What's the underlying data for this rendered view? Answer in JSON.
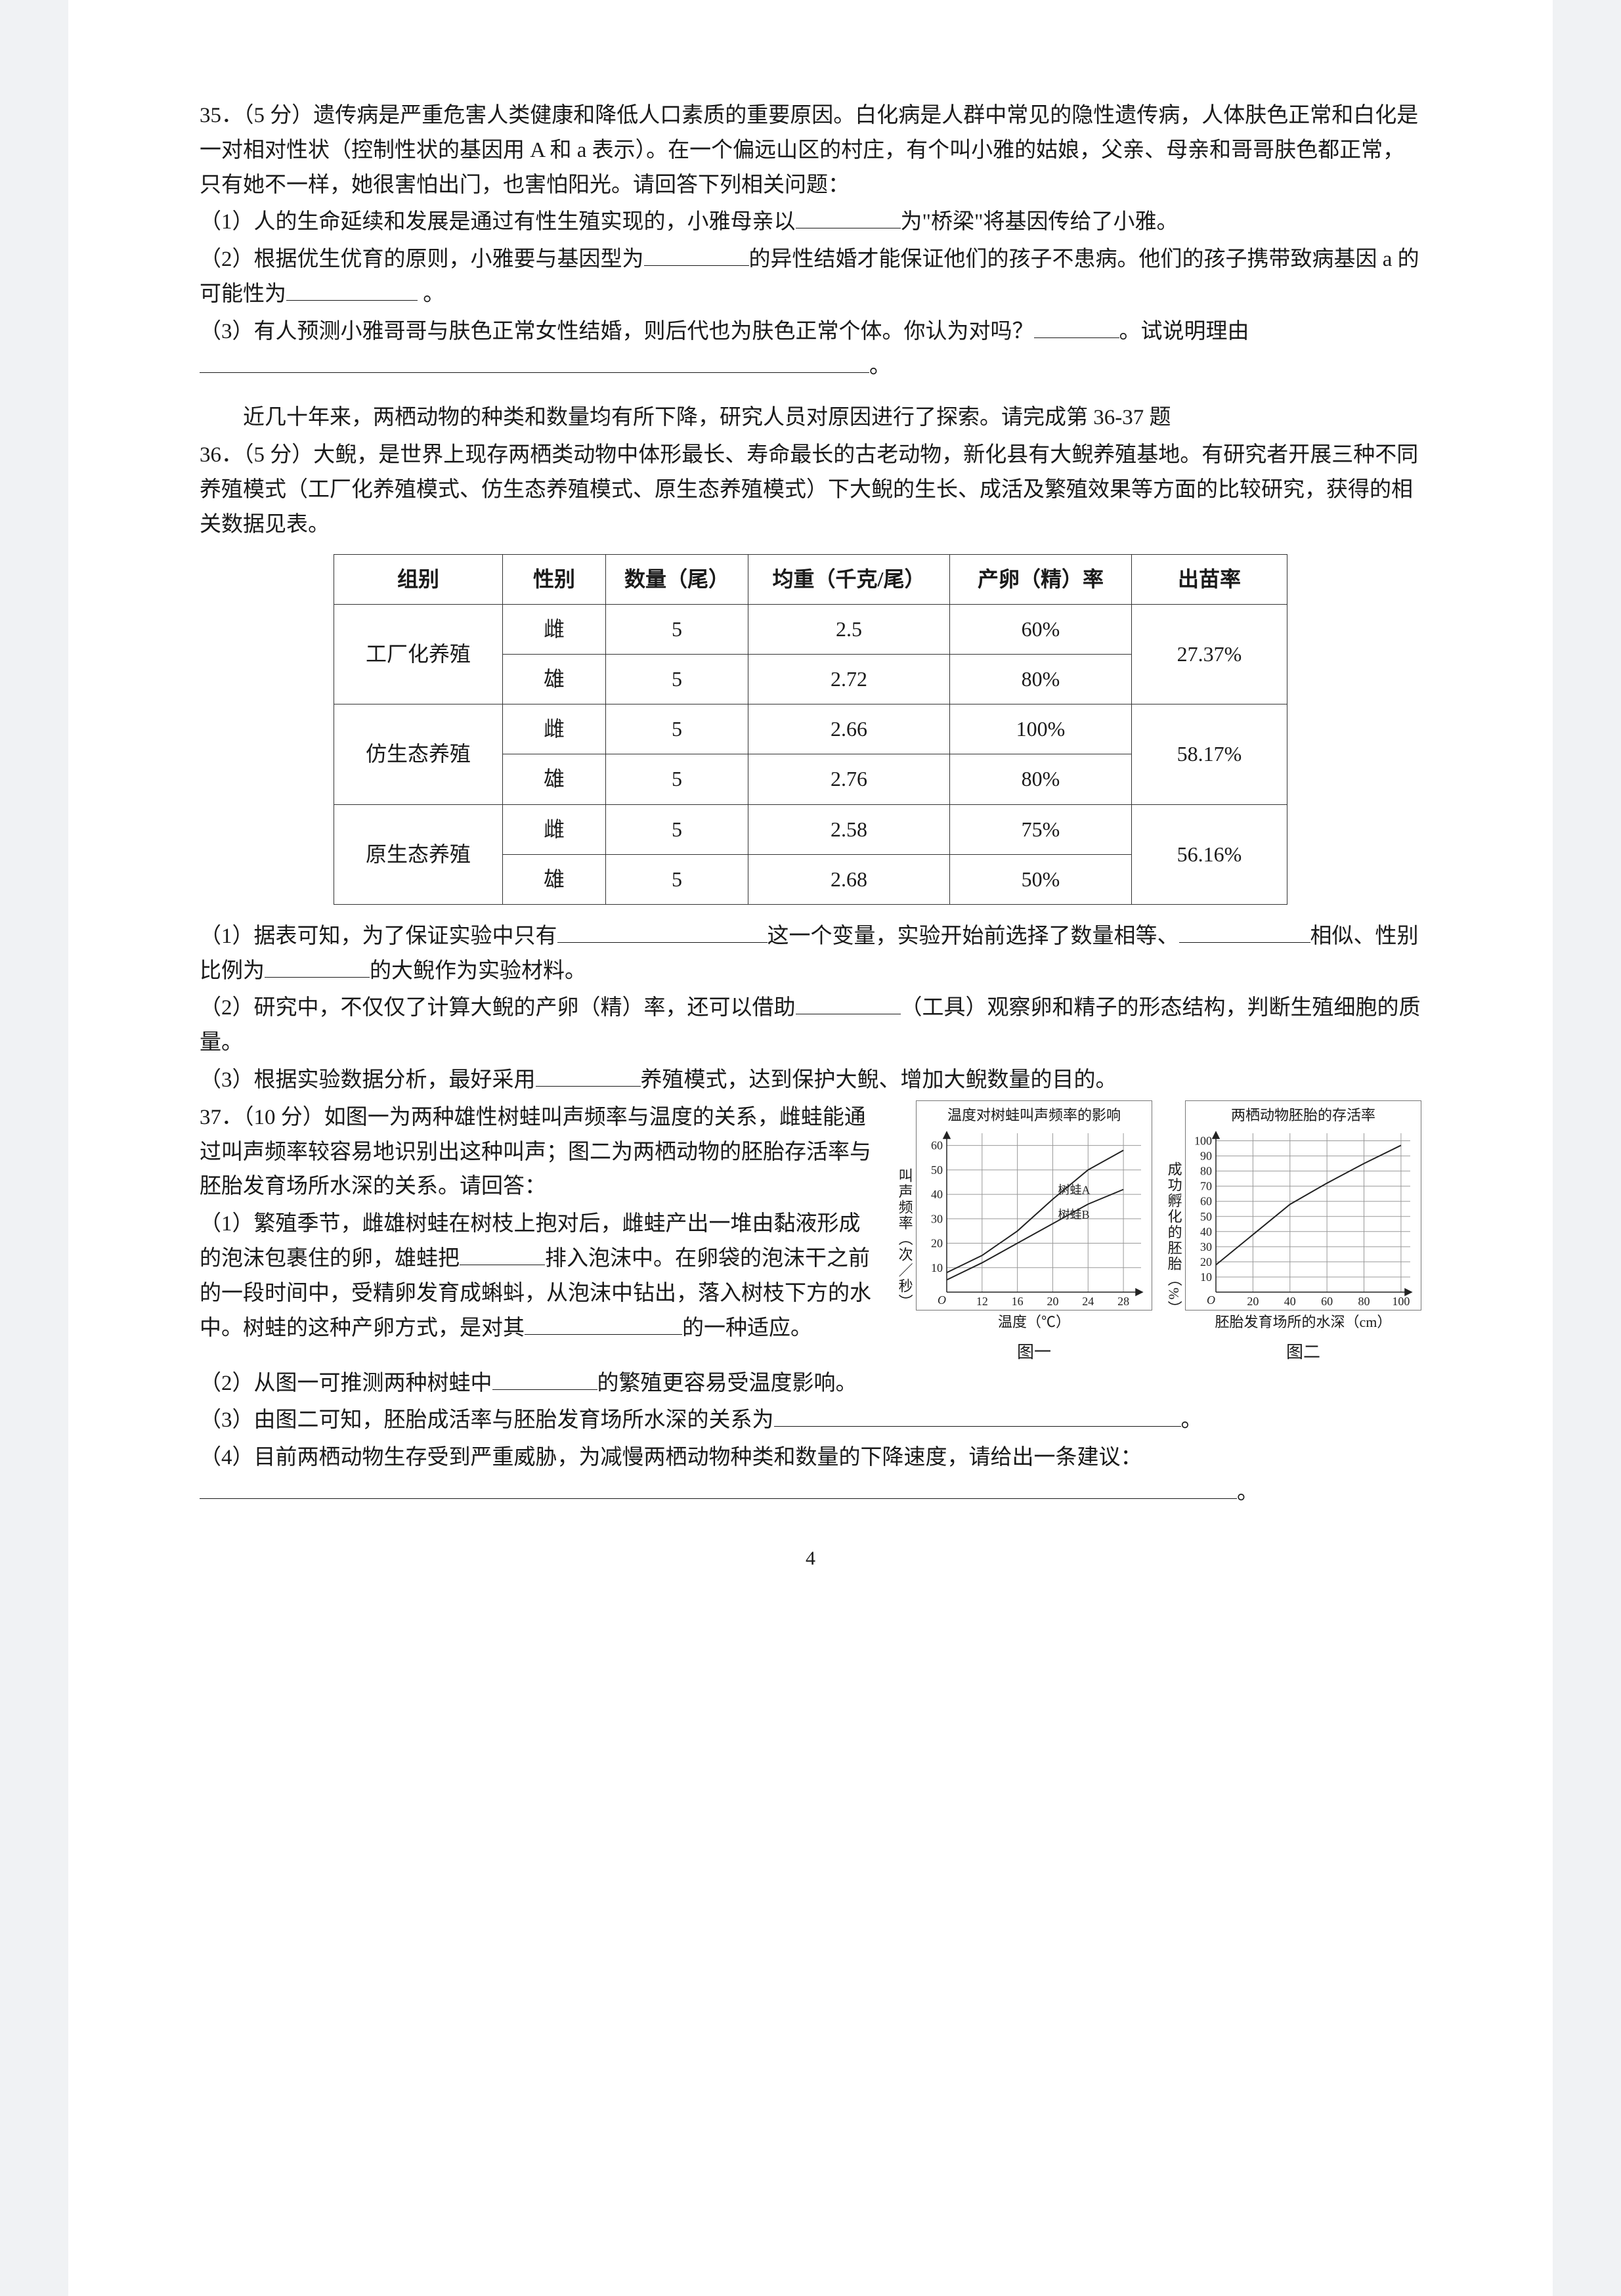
{
  "q35": {
    "header": "35．（5 分）遗传病是严重危害人类健康和降低人口素质的重要原因。白化病是人群中常见的隐性遗传病，人体肤色正常和白化是一对相对性状（控制性状的基因用 A 和 a 表示）。在一个偏远山区的村庄，有个叫小雅的姑娘，父亲、母亲和哥哥肤色都正常，只有她不一样，她很害怕出门，也害怕阳光。请回答下列相关问题：",
    "p1a": "（1）人的生命延续和发展是通过有性生殖实现的，小雅母亲以",
    "p1b": "为\"桥梁\"将基因传给了小雅。",
    "p2a": "（2）根据优生优育的原则，小雅要与基因型为",
    "p2b": "的异性结婚才能保证他们的孩子不患病。他们的孩子携带致病基因 a 的可能性为",
    "p2c": " 。",
    "p3a": "（3）有人预测小雅哥哥与肤色正常女性结婚，则后代也为肤色正常个体。你认为对吗？",
    "p3b": "。试说明理由",
    "p3c": "。"
  },
  "intro": "近几十年来，两栖动物的种类和数量均有所下降，研究人员对原因进行了探索。请完成第 36-37 题",
  "q36": {
    "header": "36．（5 分）大鲵，是世界上现存两栖类动物中体形最长、寿命最长的古老动物，新化县有大鲵养殖基地。有研究者开展三种不同养殖模式（工厂化养殖模式、仿生态养殖模式、原生态养殖模式）下大鲵的生长、成活及繁殖效果等方面的比较研究，获得的相关数据见表。",
    "columns": [
      "组别",
      "性别",
      "数量（尾）",
      "均重（千克/尾）",
      "产卵（精）率",
      "出苗率"
    ],
    "rows": [
      [
        "工厂化养殖",
        "雌",
        "5",
        "2.5",
        "60%",
        "27.37%"
      ],
      [
        "",
        "雄",
        "5",
        "2.72",
        "80%",
        ""
      ],
      [
        "仿生态养殖",
        "雌",
        "5",
        "2.66",
        "100%",
        "58.17%"
      ],
      [
        "",
        "雄",
        "5",
        "2.76",
        "80%",
        ""
      ],
      [
        "原生态养殖",
        "雌",
        "5",
        "2.58",
        "75%",
        "56.16%"
      ],
      [
        "",
        "雄",
        "5",
        "2.68",
        "50%",
        ""
      ]
    ],
    "p1a": "（1）据表可知，为了保证实验中只有",
    "p1b": "这一个变量，实验开始前选择了数量相等、",
    "p1c": "相似、性别比例为",
    "p1d": "的大鲵作为实验材料。",
    "p2a": "（2）研究中，不仅仅了计算大鲵的产卵（精）率，还可以借助",
    "p2b": "（工具）观察卵和精子的形态结构，判断生殖细胞的质量。",
    "p3a": "（3）根据实验数据分析，最好采用",
    "p3b": "养殖模式，达到保护大鲵、增加大鲵数量的目的。"
  },
  "q37": {
    "header": "37．（10 分）如图一为两种雄性树蛙叫声频率与温度的关系，雌蛙能通过叫声频率较容易地识别出这种叫声；图二为两栖动物的胚胎存活率与胚胎发育场所水深的关系。请回答：",
    "p1a": "（1）繁殖季节，雌雄树蛙在树枝上抱对后，雌蛙产出一堆由黏液形成的泡沫包裹住的卵，雄蛙把",
    "p1b": "排入泡沫中。在卵袋的泡沫干之前的一段时间中，受精卵发育成蝌蚪，从泡沫中钻出，落入树枝下方的水中。树蛙的这种产卵方式，是对其",
    "p1c": "的一种适应。",
    "p2a": "（2）从图一可推测两种树蛙中",
    "p2b": "的繁殖更容易受温度影响。",
    "p3a": "（3）由图二可知，胚胎成活率与胚胎发育场所水深的关系为",
    "p3b": "。",
    "p4a": "（4）目前两栖动物生存受到严重威胁，为减慢两栖动物种类和数量的下降速度，请给出一条建议：",
    "p4b": "。"
  },
  "chart1": {
    "title": "温度对树蛙叫声频率的影响",
    "ylabel": "叫声频率（次／秒）",
    "yticks": [
      10,
      20,
      30,
      40,
      50,
      60
    ],
    "xticks": [
      12,
      16,
      20,
      24,
      28
    ],
    "xaxis": "温度（℃）",
    "caption": "图一",
    "seriesA": {
      "label": "树蛙A",
      "points": [
        [
          8,
          8
        ],
        [
          12,
          15
        ],
        [
          16,
          25
        ],
        [
          20,
          38
        ],
        [
          24,
          50
        ],
        [
          28,
          58
        ]
      ]
    },
    "seriesB": {
      "label": "树蛙B",
      "points": [
        [
          8,
          5
        ],
        [
          12,
          12
        ],
        [
          16,
          20
        ],
        [
          20,
          28
        ],
        [
          24,
          36
        ],
        [
          28,
          42
        ]
      ]
    },
    "ylim": [
      0,
      65
    ],
    "xlim": [
      8,
      30
    ],
    "grid_color": "#999",
    "axis_color": "#222",
    "bg": "#ffffff",
    "line_width": 2,
    "tick_fontsize": 18,
    "label_fontsize": 22
  },
  "chart2": {
    "title": "两栖动物胚胎的存活率",
    "ylabel": "成功孵化的胚胎（%）",
    "yticks": [
      10,
      20,
      30,
      40,
      50,
      60,
      70,
      80,
      90,
      100
    ],
    "xticks": [
      20,
      40,
      60,
      80,
      100
    ],
    "xaxis": "胚胎发育场所的水深（cm）",
    "caption": "图二",
    "series": {
      "points": [
        [
          0,
          18
        ],
        [
          20,
          38
        ],
        [
          40,
          58
        ],
        [
          60,
          72
        ],
        [
          80,
          85
        ],
        [
          100,
          97
        ]
      ]
    },
    "ylim": [
      0,
      105
    ],
    "xlim": [
      0,
      105
    ],
    "grid_color": "#999",
    "axis_color": "#222",
    "bg": "#ffffff",
    "line_width": 2,
    "tick_fontsize": 18,
    "label_fontsize": 22
  },
  "footer": "4"
}
